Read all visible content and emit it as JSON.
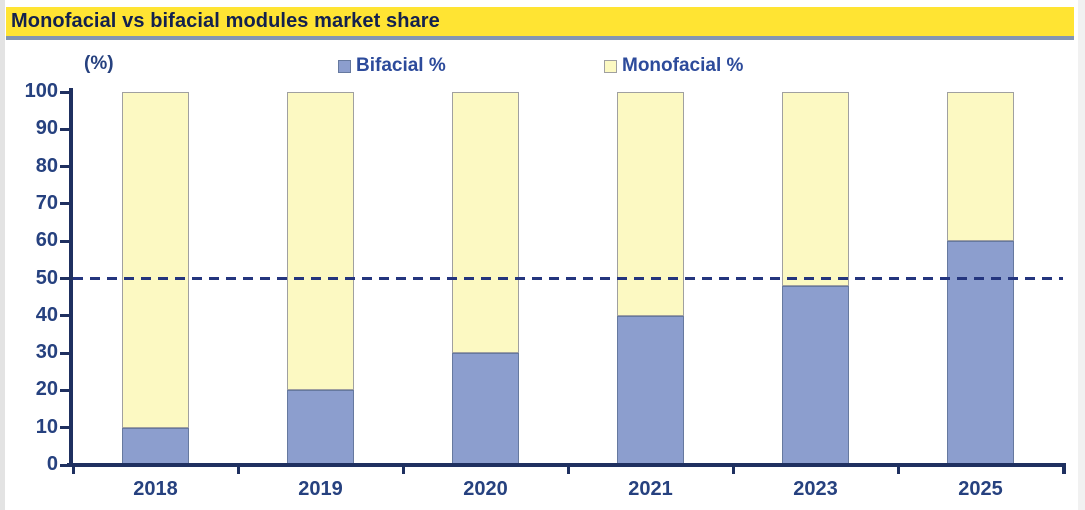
{
  "title": "Monofacial vs bifacial modules market share",
  "y_axis_unit_label": "(%)",
  "colors": {
    "title_bar_bg": "#ffe433",
    "title_text": "#13214e",
    "title_underline": "#8496b0",
    "axis": "#1f3060",
    "tick_label_text": "#26417f",
    "legend_text": "#2d4b9b",
    "bifacial_fill": "#8c9ece",
    "bifacial_border": "#66799f",
    "monofacial_fill": "#fcf9c2",
    "monofacial_border": "#a0a0a0",
    "reference_line": "#24357e"
  },
  "chart_data": {
    "type": "bar",
    "stacked": true,
    "title": "Monofacial vs bifacial modules market share",
    "ylabel": "(%)",
    "xlabel": "",
    "categories": [
      "2018",
      "2019",
      "2020",
      "2021",
      "2023",
      "2025"
    ],
    "series": [
      {
        "name": "Bifacial %",
        "color": "#8c9ece",
        "values": [
          10,
          20,
          30,
          40,
          48,
          60
        ]
      },
      {
        "name": "Monofacial %",
        "color": "#fcf9c2",
        "values": [
          90,
          80,
          70,
          60,
          52,
          40
        ]
      }
    ],
    "ylim": [
      0,
      100
    ],
    "yticks": [
      0,
      10,
      20,
      30,
      40,
      50,
      60,
      70,
      80,
      90,
      100
    ],
    "grid": false,
    "legend_position": "top",
    "reference_line": {
      "y": 50,
      "style": "dashed",
      "color": "#24357e"
    }
  }
}
